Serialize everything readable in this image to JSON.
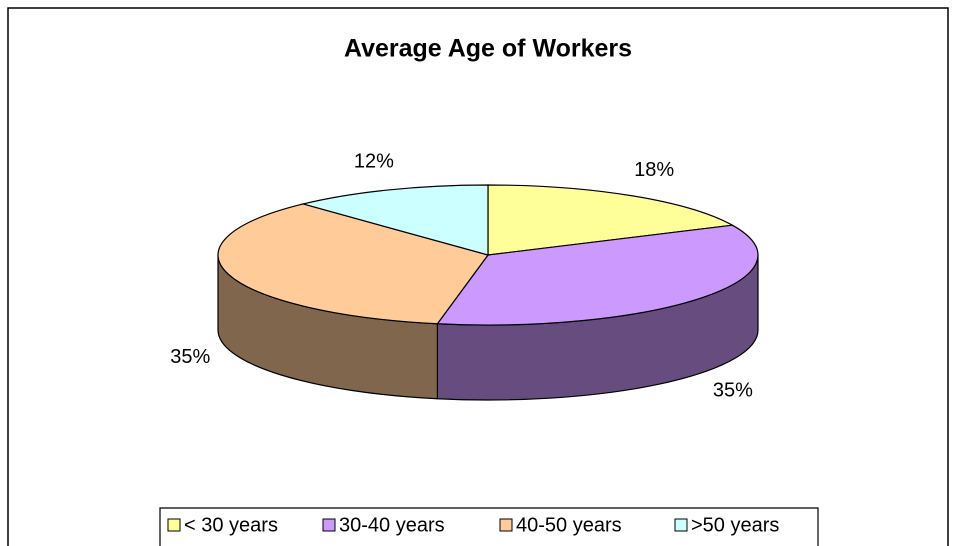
{
  "chart_data": {
    "type": "pie3d",
    "title": "Average Age of Workers",
    "categories": [
      "< 30 years",
      "30-40 years",
      "40-50 years",
      ">50 years"
    ],
    "values": [
      18,
      35,
      35,
      12
    ],
    "value_labels": [
      "18%",
      "35%",
      "35%",
      "12%"
    ],
    "colors": [
      "#ffff99",
      "#cc99ff",
      "#ffcc99",
      "#ccffff"
    ],
    "legend": "bottom"
  }
}
